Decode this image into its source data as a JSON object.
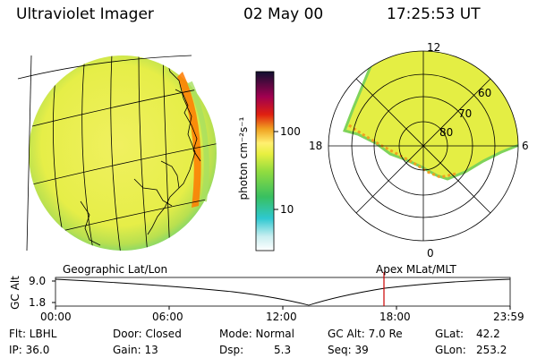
{
  "header": {
    "title": "Ultraviolet Imager",
    "date": "02 May 00",
    "time": "17:25:53 UT"
  },
  "colorbar": {
    "unit_label": "photon cm⁻²s⁻¹",
    "ticks": [
      "100",
      "10"
    ]
  },
  "polar": {
    "mlt_labels": [
      "12",
      "18",
      "6",
      "0"
    ],
    "lat_labels": [
      "60",
      "70",
      "80"
    ]
  },
  "timeline": {
    "left_label": "Geographic Lat/Lon",
    "right_label": "Apex MLat/MLT",
    "axis_label": "GC Alt",
    "y_ticks": [
      "9.0",
      "1.8"
    ],
    "x_ticks": [
      "00:00",
      "06:00",
      "12:00",
      "18:00",
      "23:59"
    ],
    "marker_color": "#cc0000"
  },
  "info": {
    "flt": "Flt: LBHL",
    "ip": "IP: 36.0",
    "door": "Door: Closed",
    "gain": "Gain: 13",
    "mode": "Mode: Normal",
    "dsp_label": "Dsp:",
    "dsp_value": "5.3",
    "gcalt": "GC Alt: 7.0 Re",
    "seq": "Seq: 39",
    "glat_label": "GLat:",
    "glat_value": "42.2",
    "glon_label": "GLon:",
    "glon_value": "253.2"
  },
  "colors": {
    "auroral_fill": "#e4ee44",
    "auroral_edge": "#7fd35a",
    "limb": "#ff6a00"
  }
}
